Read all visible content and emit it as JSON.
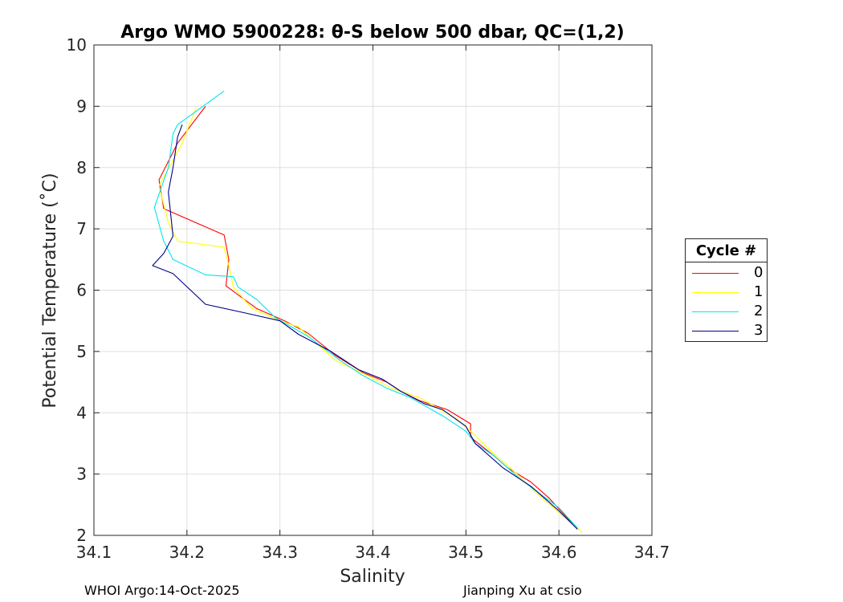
{
  "chart_data": {
    "type": "line",
    "title": "Argo WMO 5900228: θ-S below 500 dbar,  QC=(1,2)",
    "xlabel": "Salinity",
    "ylabel": "Potential Temperature (˚C)",
    "xlim": [
      34.1,
      34.7
    ],
    "ylim": [
      2,
      10
    ],
    "xticks": [
      34.1,
      34.2,
      34.3,
      34.4,
      34.5,
      34.6,
      34.7
    ],
    "xtick_labels": [
      "34.1",
      "34.2",
      "34.3",
      "34.4",
      "34.5",
      "34.6",
      "34.7"
    ],
    "yticks": [
      2,
      3,
      4,
      5,
      6,
      7,
      8,
      9,
      10
    ],
    "ytick_labels": [
      "2",
      "3",
      "4",
      "5",
      "6",
      "7",
      "8",
      "9",
      "10"
    ],
    "grid": true,
    "legend": {
      "title": "Cycle #",
      "placement": "right"
    },
    "series": [
      {
        "name": "0",
        "color": "#ff0000",
        "points": [
          [
            34.22,
            9.0
          ],
          [
            34.19,
            8.4
          ],
          [
            34.17,
            7.8
          ],
          [
            34.175,
            7.33
          ],
          [
            34.24,
            6.9
          ],
          [
            34.245,
            6.5
          ],
          [
            34.242,
            6.07
          ],
          [
            34.275,
            5.7
          ],
          [
            34.305,
            5.5
          ],
          [
            34.33,
            5.3
          ],
          [
            34.36,
            4.93
          ],
          [
            34.39,
            4.65
          ],
          [
            34.415,
            4.5
          ],
          [
            34.43,
            4.35
          ],
          [
            34.45,
            4.2
          ],
          [
            34.48,
            4.05
          ],
          [
            34.505,
            3.82
          ],
          [
            34.505,
            3.6
          ],
          [
            34.53,
            3.3
          ],
          [
            34.545,
            3.1
          ],
          [
            34.57,
            2.87
          ],
          [
            34.59,
            2.6
          ],
          [
            34.62,
            2.1
          ]
        ]
      },
      {
        "name": "1",
        "color": "#ffff00",
        "points": [
          [
            34.21,
            8.98
          ],
          [
            34.195,
            8.4
          ],
          [
            34.17,
            7.7
          ],
          [
            34.18,
            7.1
          ],
          [
            34.19,
            6.8
          ],
          [
            34.24,
            6.7
          ],
          [
            34.245,
            6.4
          ],
          [
            34.25,
            6.05
          ],
          [
            34.27,
            5.7
          ],
          [
            34.3,
            5.5
          ],
          [
            34.32,
            5.4
          ],
          [
            34.36,
            4.85
          ],
          [
            34.395,
            4.6
          ],
          [
            34.42,
            4.4
          ],
          [
            34.45,
            4.25
          ],
          [
            34.49,
            3.9
          ],
          [
            34.505,
            3.7
          ],
          [
            34.525,
            3.4
          ],
          [
            34.555,
            3.0
          ],
          [
            34.575,
            2.7
          ],
          [
            34.625,
            2.05
          ]
        ]
      },
      {
        "name": "2",
        "color": "#00e5ee",
        "points": [
          [
            34.24,
            9.25
          ],
          [
            34.19,
            8.7
          ],
          [
            34.185,
            8.55
          ],
          [
            34.18,
            8.0
          ],
          [
            34.165,
            7.35
          ],
          [
            34.175,
            6.8
          ],
          [
            34.185,
            6.5
          ],
          [
            34.22,
            6.25
          ],
          [
            34.25,
            6.22
          ],
          [
            34.255,
            6.05
          ],
          [
            34.275,
            5.85
          ],
          [
            34.295,
            5.55
          ],
          [
            34.33,
            5.25
          ],
          [
            34.365,
            4.85
          ],
          [
            34.39,
            4.6
          ],
          [
            34.415,
            4.4
          ],
          [
            34.44,
            4.25
          ],
          [
            34.475,
            3.95
          ],
          [
            34.5,
            3.7
          ],
          [
            34.51,
            3.5
          ],
          [
            34.53,
            3.3
          ],
          [
            34.56,
            2.9
          ],
          [
            34.6,
            2.45
          ],
          [
            34.62,
            2.12
          ]
        ]
      },
      {
        "name": "3",
        "color": "#00008b",
        "points": [
          [
            34.195,
            8.7
          ],
          [
            34.19,
            8.5
          ],
          [
            34.185,
            8.0
          ],
          [
            34.18,
            7.6
          ],
          [
            34.185,
            6.88
          ],
          [
            34.175,
            6.6
          ],
          [
            34.163,
            6.4
          ],
          [
            34.185,
            6.27
          ],
          [
            34.22,
            5.77
          ],
          [
            34.265,
            5.62
          ],
          [
            34.3,
            5.5
          ],
          [
            34.32,
            5.28
          ],
          [
            34.355,
            5.0
          ],
          [
            34.385,
            4.7
          ],
          [
            34.41,
            4.55
          ],
          [
            34.43,
            4.35
          ],
          [
            34.455,
            4.15
          ],
          [
            34.475,
            4.05
          ],
          [
            34.5,
            3.78
          ],
          [
            34.51,
            3.5
          ],
          [
            34.54,
            3.1
          ],
          [
            34.57,
            2.8
          ],
          [
            34.6,
            2.4
          ],
          [
            34.62,
            2.1
          ]
        ]
      }
    ]
  },
  "footer": {
    "left": "WHOI Argo:14-Oct-2025",
    "right": "Jianping Xu at csio"
  }
}
